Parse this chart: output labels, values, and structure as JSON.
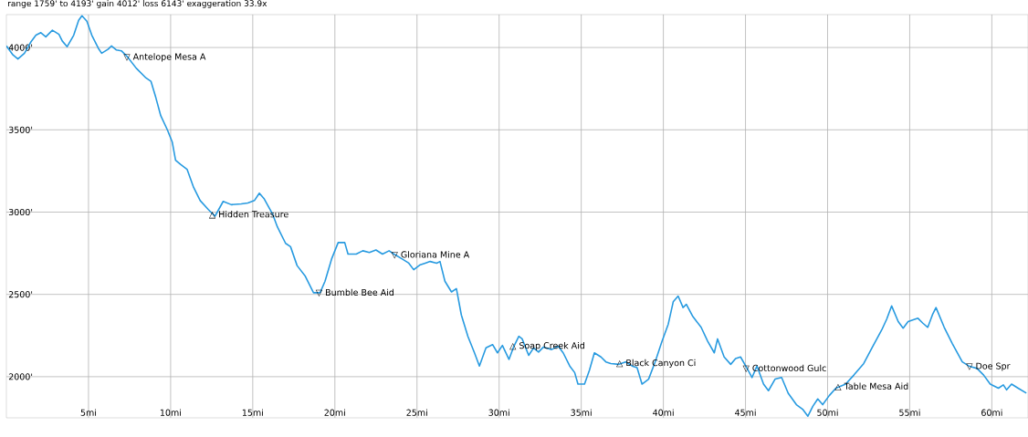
{
  "chart_data": {
    "type": "line",
    "title": "range 1759' to 4193'  gain 4012'  loss 6143'  exaggeration 33.9x",
    "x": [
      0.0,
      0.4,
      0.7,
      1.1,
      1.5,
      1.8,
      2.1,
      2.4,
      2.8,
      3.2,
      3.4,
      3.7,
      4.1,
      4.4,
      4.6,
      4.9,
      5.2,
      5.6,
      5.8,
      6.2,
      6.4,
      6.7,
      7.0,
      7.4,
      7.9,
      8.5,
      8.8,
      9.1,
      9.4,
      9.8,
      10.1,
      10.3,
      10.6,
      11.0,
      11.4,
      11.8,
      12.3,
      12.7,
      13.2,
      13.7,
      14.3,
      14.7,
      15.1,
      15.4,
      15.7,
      16.2,
      16.5,
      17.0,
      17.3,
      17.7,
      18.2,
      18.7,
      19.1,
      19.4,
      19.8,
      20.2,
      20.6,
      20.8,
      21.3,
      21.7,
      22.1,
      22.5,
      22.9,
      23.3,
      23.6,
      24.1,
      24.5,
      24.8,
      25.2,
      25.5,
      25.8,
      26.2,
      26.4,
      26.7,
      27.1,
      27.4,
      27.7,
      28.1,
      28.5,
      28.8,
      29.2,
      29.6,
      29.9,
      30.2,
      30.6,
      30.9,
      31.2,
      31.4,
      31.8,
      32.1,
      32.4,
      32.7,
      33.2,
      33.6,
      33.9,
      34.3,
      34.6,
      34.8,
      35.2,
      35.5,
      35.8,
      36.2,
      36.5,
      36.8,
      37.3,
      37.7,
      38.1,
      38.4,
      38.7,
      39.1,
      39.5,
      39.9,
      40.3,
      40.6,
      40.9,
      41.2,
      41.4,
      41.8,
      42.3,
      42.7,
      43.1,
      43.3,
      43.7,
      44.1,
      44.4,
      44.7,
      45.1,
      45.4,
      45.7,
      46.1,
      46.4,
      46.8,
      47.2,
      47.6,
      48.1,
      48.5,
      48.8,
      49.1,
      49.4,
      49.7,
      50.1,
      50.5,
      51.1,
      51.6,
      52.2,
      52.7,
      53.3,
      53.6,
      53.9,
      54.3,
      54.6,
      54.9,
      55.5,
      55.8,
      56.1,
      56.4,
      56.6,
      57.1,
      57.6,
      58.2,
      58.6,
      59.1,
      59.5,
      59.9,
      60.4,
      60.7,
      60.9,
      61.2,
      61.6,
      62.1
    ],
    "values": [
      4010,
      3955,
      3930,
      3965,
      4035,
      4075,
      4090,
      4065,
      4105,
      4080,
      4040,
      4005,
      4075,
      4165,
      4193,
      4160,
      4075,
      3995,
      3965,
      3990,
      4010,
      3985,
      3980,
      3940,
      3875,
      3815,
      3795,
      3695,
      3585,
      3500,
      3425,
      3315,
      3290,
      3260,
      3150,
      3070,
      3015,
      2975,
      3065,
      3045,
      3050,
      3055,
      3070,
      3115,
      3080,
      2990,
      2910,
      2810,
      2790,
      2675,
      2610,
      2510,
      2510,
      2580,
      2715,
      2815,
      2815,
      2745,
      2745,
      2765,
      2755,
      2770,
      2745,
      2765,
      2745,
      2715,
      2690,
      2650,
      2680,
      2690,
      2700,
      2690,
      2700,
      2580,
      2515,
      2535,
      2375,
      2245,
      2145,
      2065,
      2175,
      2195,
      2145,
      2190,
      2105,
      2185,
      2245,
      2230,
      2130,
      2175,
      2150,
      2180,
      2165,
      2185,
      2145,
      2065,
      2025,
      1955,
      1955,
      2040,
      2145,
      2120,
      2090,
      2080,
      2075,
      2090,
      2065,
      2055,
      1955,
      1985,
      2090,
      2210,
      2320,
      2455,
      2490,
      2420,
      2440,
      2365,
      2300,
      2215,
      2145,
      2230,
      2120,
      2075,
      2110,
      2120,
      2050,
      1995,
      2065,
      1955,
      1915,
      1985,
      1995,
      1900,
      1830,
      1800,
      1760,
      1820,
      1865,
      1830,
      1885,
      1930,
      1955,
      2010,
      2080,
      2175,
      2285,
      2350,
      2430,
      2335,
      2295,
      2335,
      2355,
      2325,
      2300,
      2380,
      2420,
      2300,
      2200,
      2090,
      2065,
      2050,
      2010,
      1955,
      1930,
      1950,
      1920,
      1955,
      1930,
      1900
    ],
    "color": "#279ae0",
    "xlim": [
      0,
      62.2
    ],
    "ylim": [
      1750,
      4200
    ],
    "xticks": [
      {
        "value": 5,
        "label": "5mi"
      },
      {
        "value": 10,
        "label": "10mi"
      },
      {
        "value": 15,
        "label": "15mi"
      },
      {
        "value": 20,
        "label": "20mi"
      },
      {
        "value": 25,
        "label": "25mi"
      },
      {
        "value": 30,
        "label": "30mi"
      },
      {
        "value": 35,
        "label": "35mi"
      },
      {
        "value": 40,
        "label": "40mi"
      },
      {
        "value": 45,
        "label": "45mi"
      },
      {
        "value": 50,
        "label": "50mi"
      },
      {
        "value": 55,
        "label": "55mi"
      },
      {
        "value": 60,
        "label": "60mi"
      }
    ],
    "yticks": [
      {
        "value": 2000,
        "label": "2000'"
      },
      {
        "value": 2500,
        "label": "2500'"
      },
      {
        "value": 3000,
        "label": "3000'"
      },
      {
        "value": 3500,
        "label": "3500'"
      },
      {
        "value": 4000,
        "label": "4000'"
      }
    ],
    "grid": true,
    "annotations": [
      {
        "text": "▽ Antelope Mesa A",
        "x": 7.4,
        "y": 3940
      },
      {
        "text": "△ Hidden Treasure",
        "x": 12.6,
        "y": 2985
      },
      {
        "text": "▽ Bumble Bee Aid",
        "x": 19.1,
        "y": 2510
      },
      {
        "text": "▽ Gloriana Mine A",
        "x": 23.7,
        "y": 2740
      },
      {
        "text": "△ Soap Creek Aid",
        "x": 30.9,
        "y": 2185
      },
      {
        "text": "△ Black Canyon Ci",
        "x": 37.4,
        "y": 2080
      },
      {
        "text": "▽ Cottonwood Gulc",
        "x": 45.1,
        "y": 2050
      },
      {
        "text": "△ Table Mesa Aid",
        "x": 50.7,
        "y": 1940
      },
      {
        "text": "▽ Doe Spr",
        "x": 58.7,
        "y": 2060
      }
    ]
  }
}
